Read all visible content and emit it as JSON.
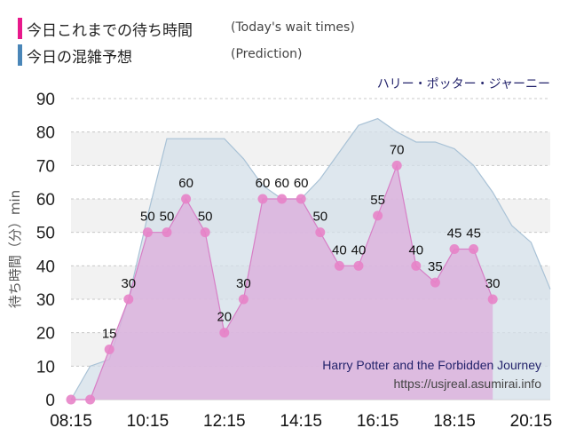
{
  "legend": {
    "actual_label": "今日これまでの待ち時間",
    "actual_note": "(Today's wait times)",
    "prediction_label": "今日の混雑予想",
    "prediction_note": "(Prediction)"
  },
  "attraction_jp": "ハリー・ポッター・ジャーニー",
  "watermark": {
    "title": "Harry Potter and the Forbidden Journey",
    "url": "https://usjreal.asumirai.info"
  },
  "colors": {
    "actual_swatch": "#e8198b",
    "prediction_swatch": "#4a86b8",
    "actual_line": "#d77fc6",
    "actual_fill": "#dcaedc",
    "actual_marker": "#e783c8",
    "prediction_line": "#a9c2d6",
    "prediction_fill": "#d3dfe8",
    "band": "#f2f2f2",
    "grid": "#c8c8c8"
  },
  "chart_data": {
    "type": "area",
    "ylabel": "待ち時間（分）min",
    "ylim": [
      0,
      90
    ],
    "yticks": [
      0,
      10,
      20,
      30,
      40,
      50,
      60,
      70,
      80,
      90
    ],
    "xticks": [
      "08:15",
      "10:15",
      "12:15",
      "14:15",
      "16:15",
      "18:15",
      "20:15"
    ],
    "x_range": [
      "08:15",
      "20:45"
    ],
    "grid": true,
    "series": [
      {
        "name": "今日これまでの待ち時間",
        "x": [
          "08:15",
          "08:45",
          "09:15",
          "09:45",
          "10:15",
          "10:45",
          "11:15",
          "11:45",
          "12:15",
          "12:45",
          "13:15",
          "13:45",
          "14:15",
          "14:45",
          "15:15",
          "15:45",
          "16:15",
          "16:45",
          "17:15",
          "17:45",
          "18:15",
          "18:45",
          "19:15"
        ],
        "values": [
          0,
          0,
          15,
          30,
          50,
          50,
          60,
          50,
          20,
          30,
          60,
          60,
          60,
          50,
          40,
          40,
          55,
          70,
          40,
          35,
          45,
          45,
          30
        ],
        "data_labels": true
      },
      {
        "name": "今日の混雑予想",
        "x": [
          "08:15",
          "08:45",
          "09:15",
          "09:45",
          "10:15",
          "10:45",
          "11:15",
          "11:45",
          "12:15",
          "12:45",
          "13:15",
          "13:45",
          "14:15",
          "14:45",
          "15:15",
          "15:45",
          "16:15",
          "16:45",
          "17:15",
          "17:45",
          "18:15",
          "18:45",
          "19:15",
          "19:45",
          "20:15",
          "20:45"
        ],
        "values": [
          0,
          10,
          12,
          30,
          55,
          78,
          78,
          78,
          78,
          72,
          64,
          60,
          60,
          66,
          74,
          82,
          84,
          80,
          77,
          77,
          75,
          70,
          62,
          52,
          47,
          33
        ]
      }
    ]
  }
}
